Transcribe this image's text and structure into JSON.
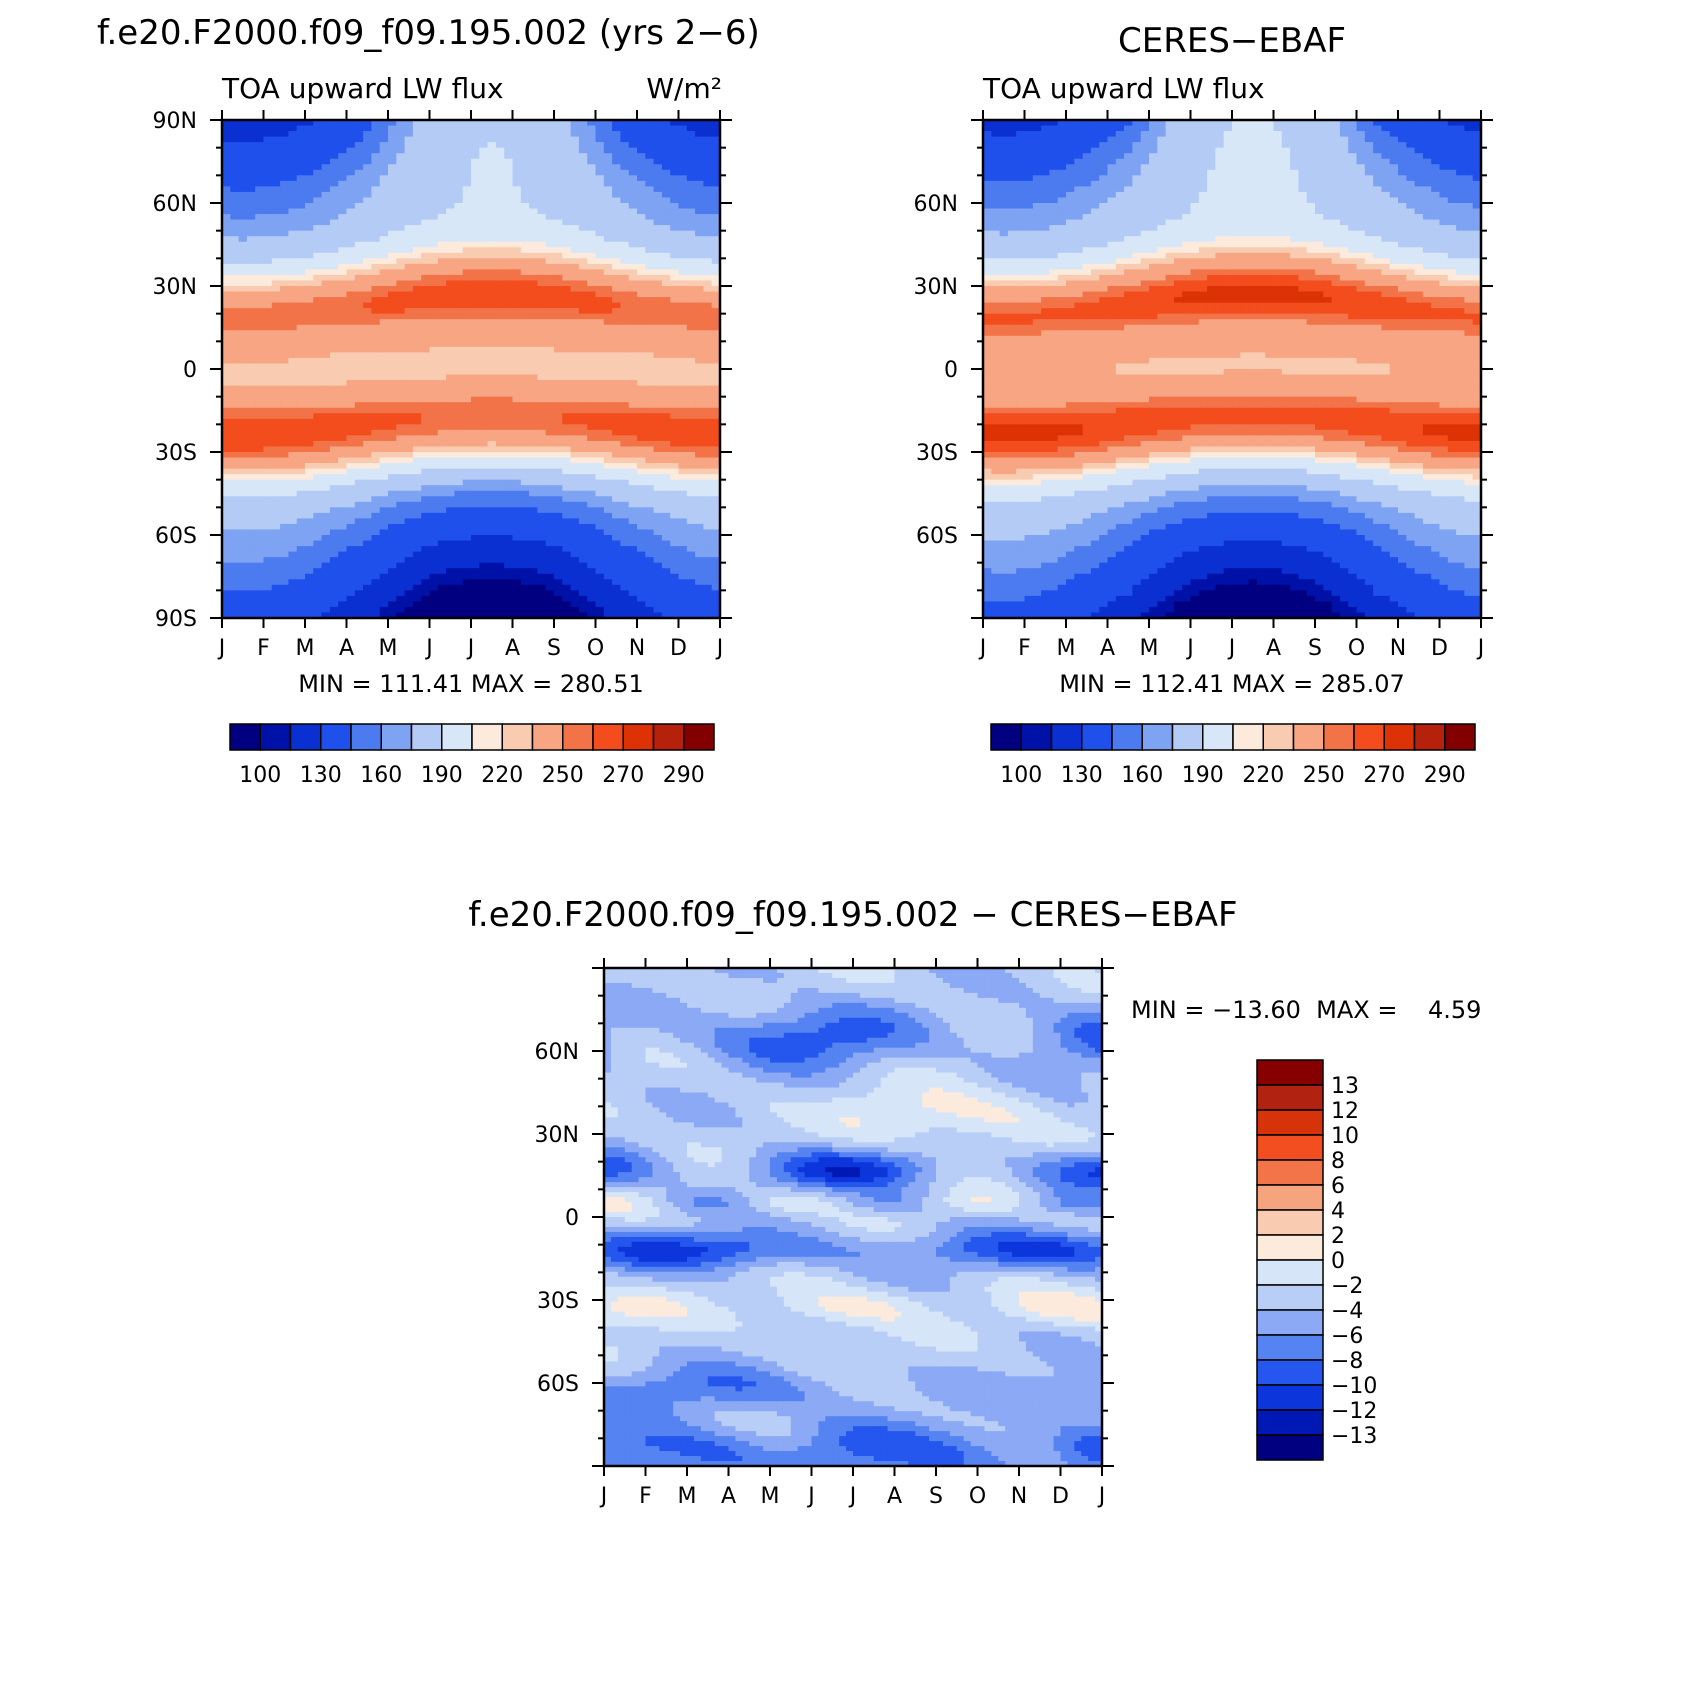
{
  "colors": {
    "abs_levels": [
      "#000080",
      "#0011a8",
      "#0a30d2",
      "#2050ec",
      "#4c7bf0",
      "#7fa3f3",
      "#b4cbf6",
      "#d8e7f8",
      "#fcebdc",
      "#f9ccb2",
      "#f7a583",
      "#f37349",
      "#f34d1d",
      "#dc3206",
      "#b5210a",
      "#830000"
    ],
    "diff_levels": [
      "#000080",
      "#0018b4",
      "#0c36dc",
      "#2556ee",
      "#5583f1",
      "#8ba9f4",
      "#b8cef7",
      "#d6e6f8",
      "#fcebdc",
      "#f9ccb2",
      "#f6a47e",
      "#f47449",
      "#f24e1f",
      "#d7330b",
      "#b22210",
      "#870000"
    ]
  },
  "chart_data": [
    {
      "type": "heatmap",
      "title": "f.e20.F2000.f09_f09.195.002 (yrs 2−6)",
      "left_label": "TOA upward LW flux",
      "right_label": "W/m²",
      "x_ticks": [
        "J",
        "F",
        "M",
        "A",
        "M",
        "J",
        "J",
        "A",
        "S",
        "O",
        "N",
        "D",
        "J"
      ],
      "y_ticks": [
        "90N",
        "60N",
        "30N",
        "0",
        "30S",
        "60S",
        "90S"
      ],
      "y_range": [
        -90,
        90
      ],
      "stats_text": "MIN = 111.41  MAX = 280.51",
      "min": 111.41,
      "max": 280.51,
      "colorbar_labels": [
        "100",
        "130",
        "160",
        "190",
        "220",
        "250",
        "270",
        "290"
      ],
      "peaks": {
        "nh_subtropics": 275,
        "sh_subtropics": 278,
        "equator": 232,
        "north_pole": 165,
        "south_pole": 115
      }
    },
    {
      "type": "heatmap",
      "title": "CERES−EBAF",
      "left_label": "TOA upward LW flux",
      "x_ticks": [
        "J",
        "F",
        "M",
        "A",
        "M",
        "J",
        "J",
        "A",
        "S",
        "O",
        "N",
        "D",
        "J"
      ],
      "y_ticks": [
        "60N",
        "30N",
        "0",
        "30S",
        "60S"
      ],
      "y_range": [
        -90,
        90
      ],
      "stats_text": "MIN = 112.41  MAX = 285.07",
      "min": 112.41,
      "max": 285.07,
      "colorbar_labels": [
        "100",
        "130",
        "160",
        "190",
        "220",
        "250",
        "270",
        "290"
      ],
      "peaks": {
        "nh_subtropics": 281,
        "sh_subtropics": 282,
        "equator": 236,
        "north_pole": 168,
        "south_pole": 118
      }
    },
    {
      "type": "heatmap",
      "title": "f.e20.F2000.f09_f09.195.002 − CERES−EBAF",
      "x_ticks": [
        "J",
        "F",
        "M",
        "A",
        "M",
        "J",
        "J",
        "A",
        "S",
        "O",
        "N",
        "D",
        "J"
      ],
      "y_ticks": [
        "60N",
        "30N",
        "0",
        "30S",
        "60S"
      ],
      "y_range": [
        -90,
        90
      ],
      "stats_text": "MIN = −13.60  MAX =    4.59",
      "min": -13.6,
      "max": 4.59,
      "colorbar_labels": [
        "13",
        "12",
        "10",
        "8",
        "6",
        "4",
        "2",
        "0",
        "−2",
        "−4",
        "−6",
        "−8",
        "−10",
        "−12",
        "−13"
      ]
    }
  ]
}
